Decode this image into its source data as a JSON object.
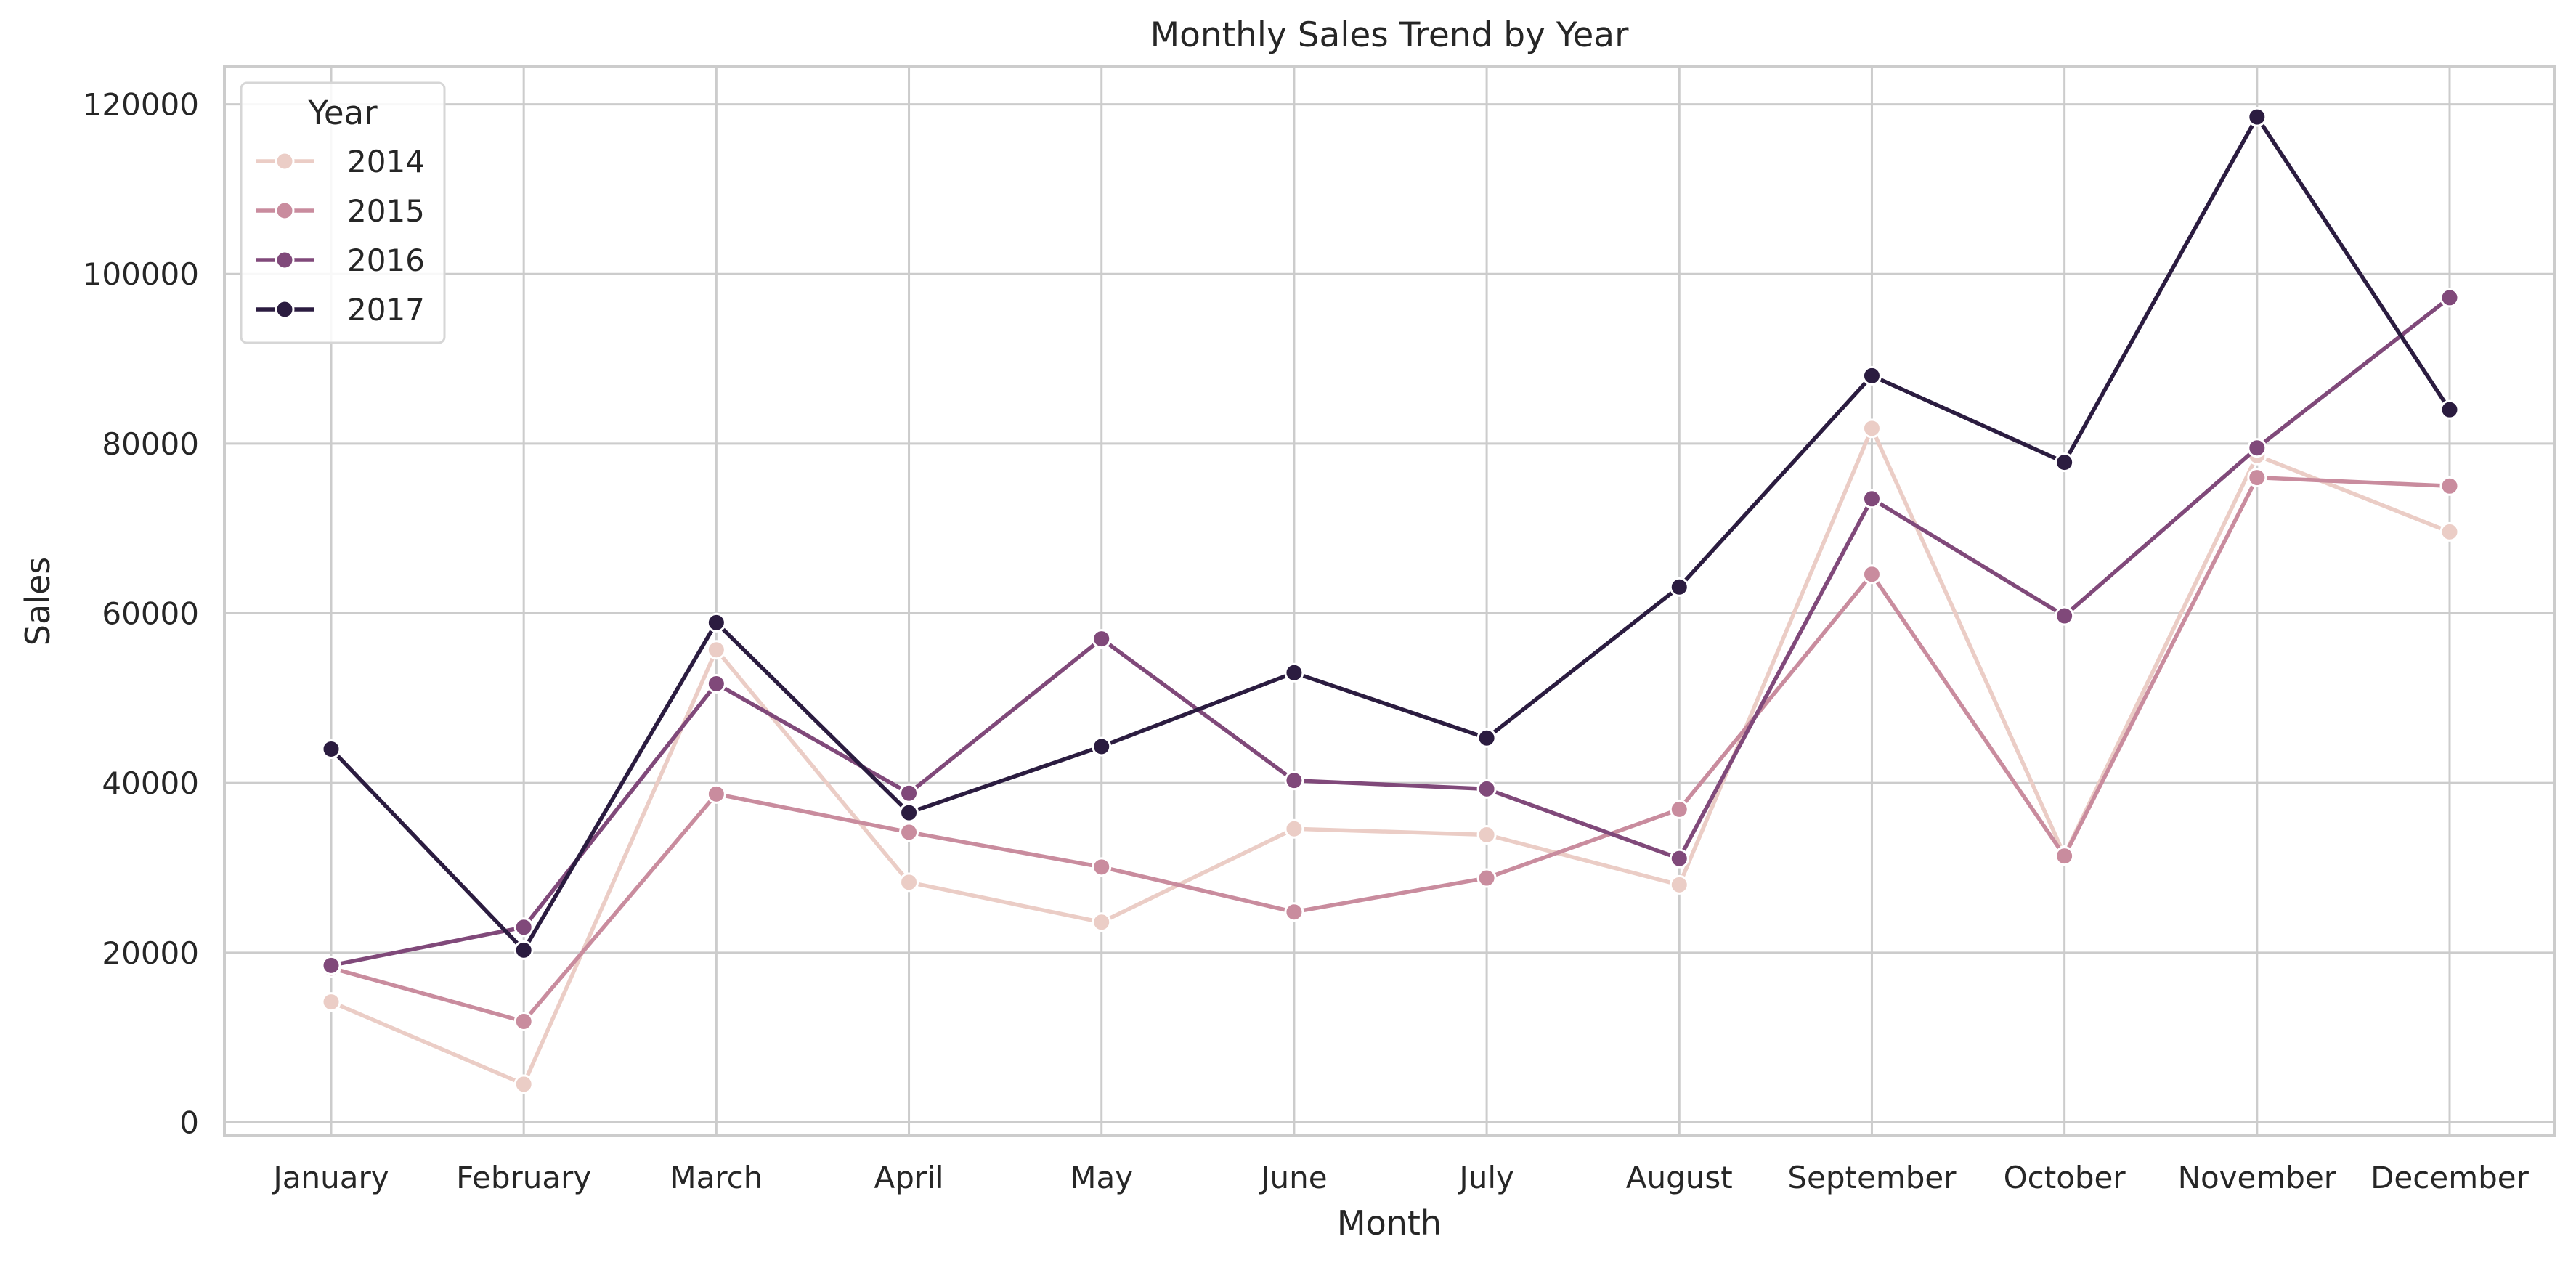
{
  "chart_data": {
    "type": "line",
    "title": "Monthly Sales Trend by Year",
    "xlabel": "Month",
    "ylabel": "Sales",
    "categories": [
      "January",
      "February",
      "March",
      "April",
      "May",
      "June",
      "July",
      "August",
      "September",
      "October",
      "November",
      "December"
    ],
    "ylim": [
      -1500,
      124500
    ],
    "yticks": [
      0,
      20000,
      40000,
      60000,
      80000,
      100000,
      120000
    ],
    "grid": true,
    "legend": {
      "title": "Year",
      "placement": "top-left"
    },
    "markers": "circle",
    "series": [
      {
        "name": "2014",
        "color": "#ebcdc6",
        "values": [
          14200,
          4500,
          55700,
          28300,
          23600,
          34600,
          33900,
          28000,
          81800,
          31500,
          78600,
          69600
        ]
      },
      {
        "name": "2015",
        "color": "#c98c9e",
        "values": [
          18200,
          11900,
          38700,
          34200,
          30100,
          24800,
          28800,
          36900,
          64600,
          31400,
          76000,
          75000
        ]
      },
      {
        "name": "2016",
        "color": "#80497a",
        "values": [
          18500,
          23000,
          51700,
          38800,
          57000,
          40300,
          39300,
          31100,
          73500,
          59700,
          79500,
          97200
        ]
      },
      {
        "name": "2017",
        "color": "#2b1c40",
        "values": [
          44000,
          20300,
          58900,
          36500,
          44300,
          53000,
          45300,
          63100,
          88000,
          77800,
          118500,
          84000
        ]
      }
    ]
  }
}
